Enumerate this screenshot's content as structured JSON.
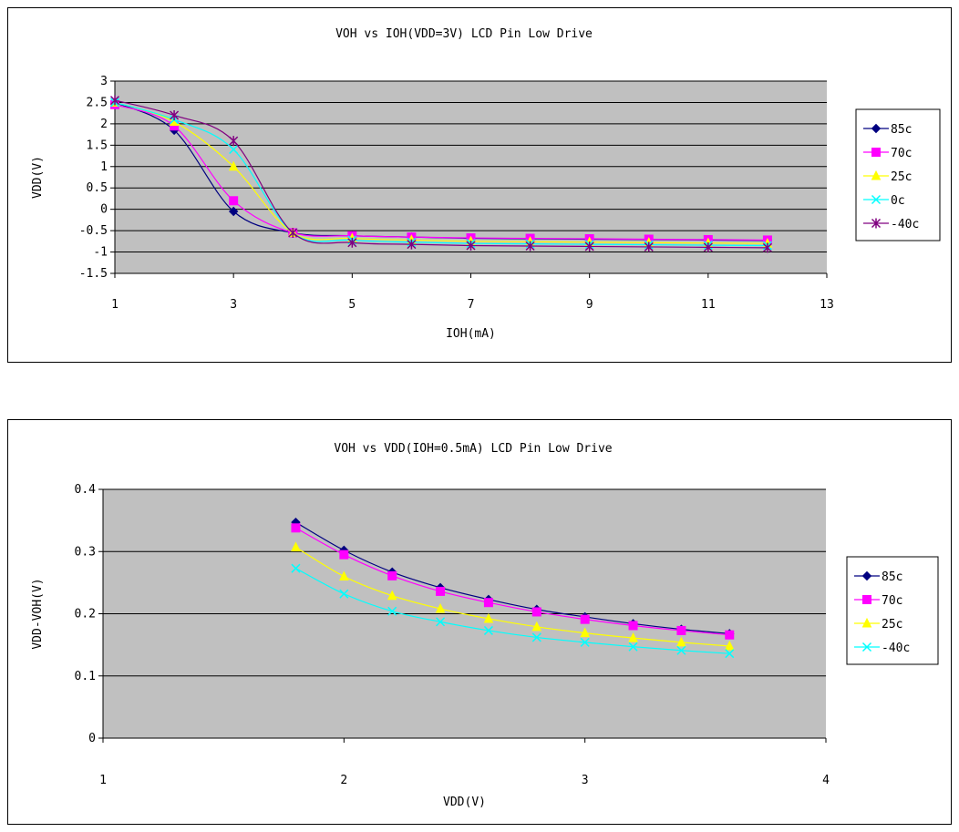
{
  "chart_data": [
    {
      "type": "line",
      "title": "VOH vs IOH(VDD=3V) LCD Pin Low Drive",
      "xlabel": "IOH(mA)",
      "ylabel": "VDD(V)",
      "xlim": [
        1,
        13
      ],
      "ylim": [
        -1.5,
        3
      ],
      "xticks": [
        "1",
        "3",
        "5",
        "7",
        "9",
        "11",
        "13"
      ],
      "yticks": [
        "3",
        "2.5",
        "2",
        "1.5",
        "1",
        "0.5",
        "0",
        "-0.5",
        "-1",
        "-1.5"
      ],
      "grid": true,
      "legend": "right",
      "x": [
        1,
        2,
        3,
        4,
        5,
        6,
        7,
        8,
        9,
        10,
        11,
        12
      ],
      "series": [
        {
          "name": "85c",
          "color": "#000080",
          "marker": "diamond",
          "values": [
            2.5,
            1.85,
            -0.05,
            -0.55,
            -0.62,
            -0.65,
            -0.68,
            -0.69,
            -0.7,
            -0.71,
            -0.72,
            -0.73
          ]
        },
        {
          "name": "70c",
          "color": "#ff00ff",
          "marker": "square",
          "values": [
            2.45,
            1.95,
            0.2,
            -0.55,
            -0.62,
            -0.65,
            -0.67,
            -0.68,
            -0.69,
            -0.7,
            -0.71,
            -0.72
          ]
        },
        {
          "name": "25c",
          "color": "#ffff00",
          "marker": "triangle",
          "values": [
            2.5,
            2.05,
            1.0,
            -0.55,
            -0.68,
            -0.72,
            -0.75,
            -0.76,
            -0.77,
            -0.78,
            -0.79,
            -0.8
          ]
        },
        {
          "name": "0c",
          "color": "#00ffff",
          "marker": "x",
          "values": [
            2.5,
            2.1,
            1.4,
            -0.55,
            -0.72,
            -0.77,
            -0.8,
            -0.81,
            -0.82,
            -0.83,
            -0.84,
            -0.85
          ]
        },
        {
          "name": "-40c",
          "color": "#800080",
          "marker": "star",
          "values": [
            2.55,
            2.2,
            1.6,
            -0.55,
            -0.78,
            -0.82,
            -0.85,
            -0.86,
            -0.87,
            -0.88,
            -0.89,
            -0.9
          ]
        }
      ]
    },
    {
      "type": "line",
      "title": "VOH vs VDD(IOH=0.5mA) LCD Pin Low Drive",
      "xlabel": "VDD(V)",
      "ylabel": "VDD-VOH(V)",
      "xlim": [
        1,
        4
      ],
      "ylim": [
        0,
        0.4
      ],
      "xticks": [
        "1",
        "2",
        "3",
        "4"
      ],
      "yticks": [
        "0.4",
        "0.3",
        "0.2",
        "0.1",
        "0"
      ],
      "grid": true,
      "legend": "right",
      "x": [
        1.8,
        2.0,
        2.2,
        2.4,
        2.6,
        2.8,
        3.0,
        3.2,
        3.4,
        3.6
      ],
      "series": [
        {
          "name": "85c",
          "color": "#000080",
          "marker": "diamond",
          "values": [
            0.347,
            0.302,
            0.267,
            0.242,
            0.223,
            0.207,
            0.195,
            0.184,
            0.175,
            0.168
          ]
        },
        {
          "name": "70c",
          "color": "#ff00ff",
          "marker": "square",
          "values": [
            0.338,
            0.295,
            0.261,
            0.236,
            0.218,
            0.203,
            0.191,
            0.181,
            0.173,
            0.166
          ]
        },
        {
          "name": "25c",
          "color": "#ffff00",
          "marker": "triangle",
          "values": [
            0.307,
            0.26,
            0.229,
            0.208,
            0.192,
            0.179,
            0.169,
            0.161,
            0.154,
            0.148
          ]
        },
        {
          "name": "-40c",
          "color": "#00ffff",
          "marker": "x",
          "values": [
            0.273,
            0.232,
            0.204,
            0.187,
            0.173,
            0.162,
            0.154,
            0.147,
            0.141,
            0.136
          ]
        }
      ]
    }
  ]
}
